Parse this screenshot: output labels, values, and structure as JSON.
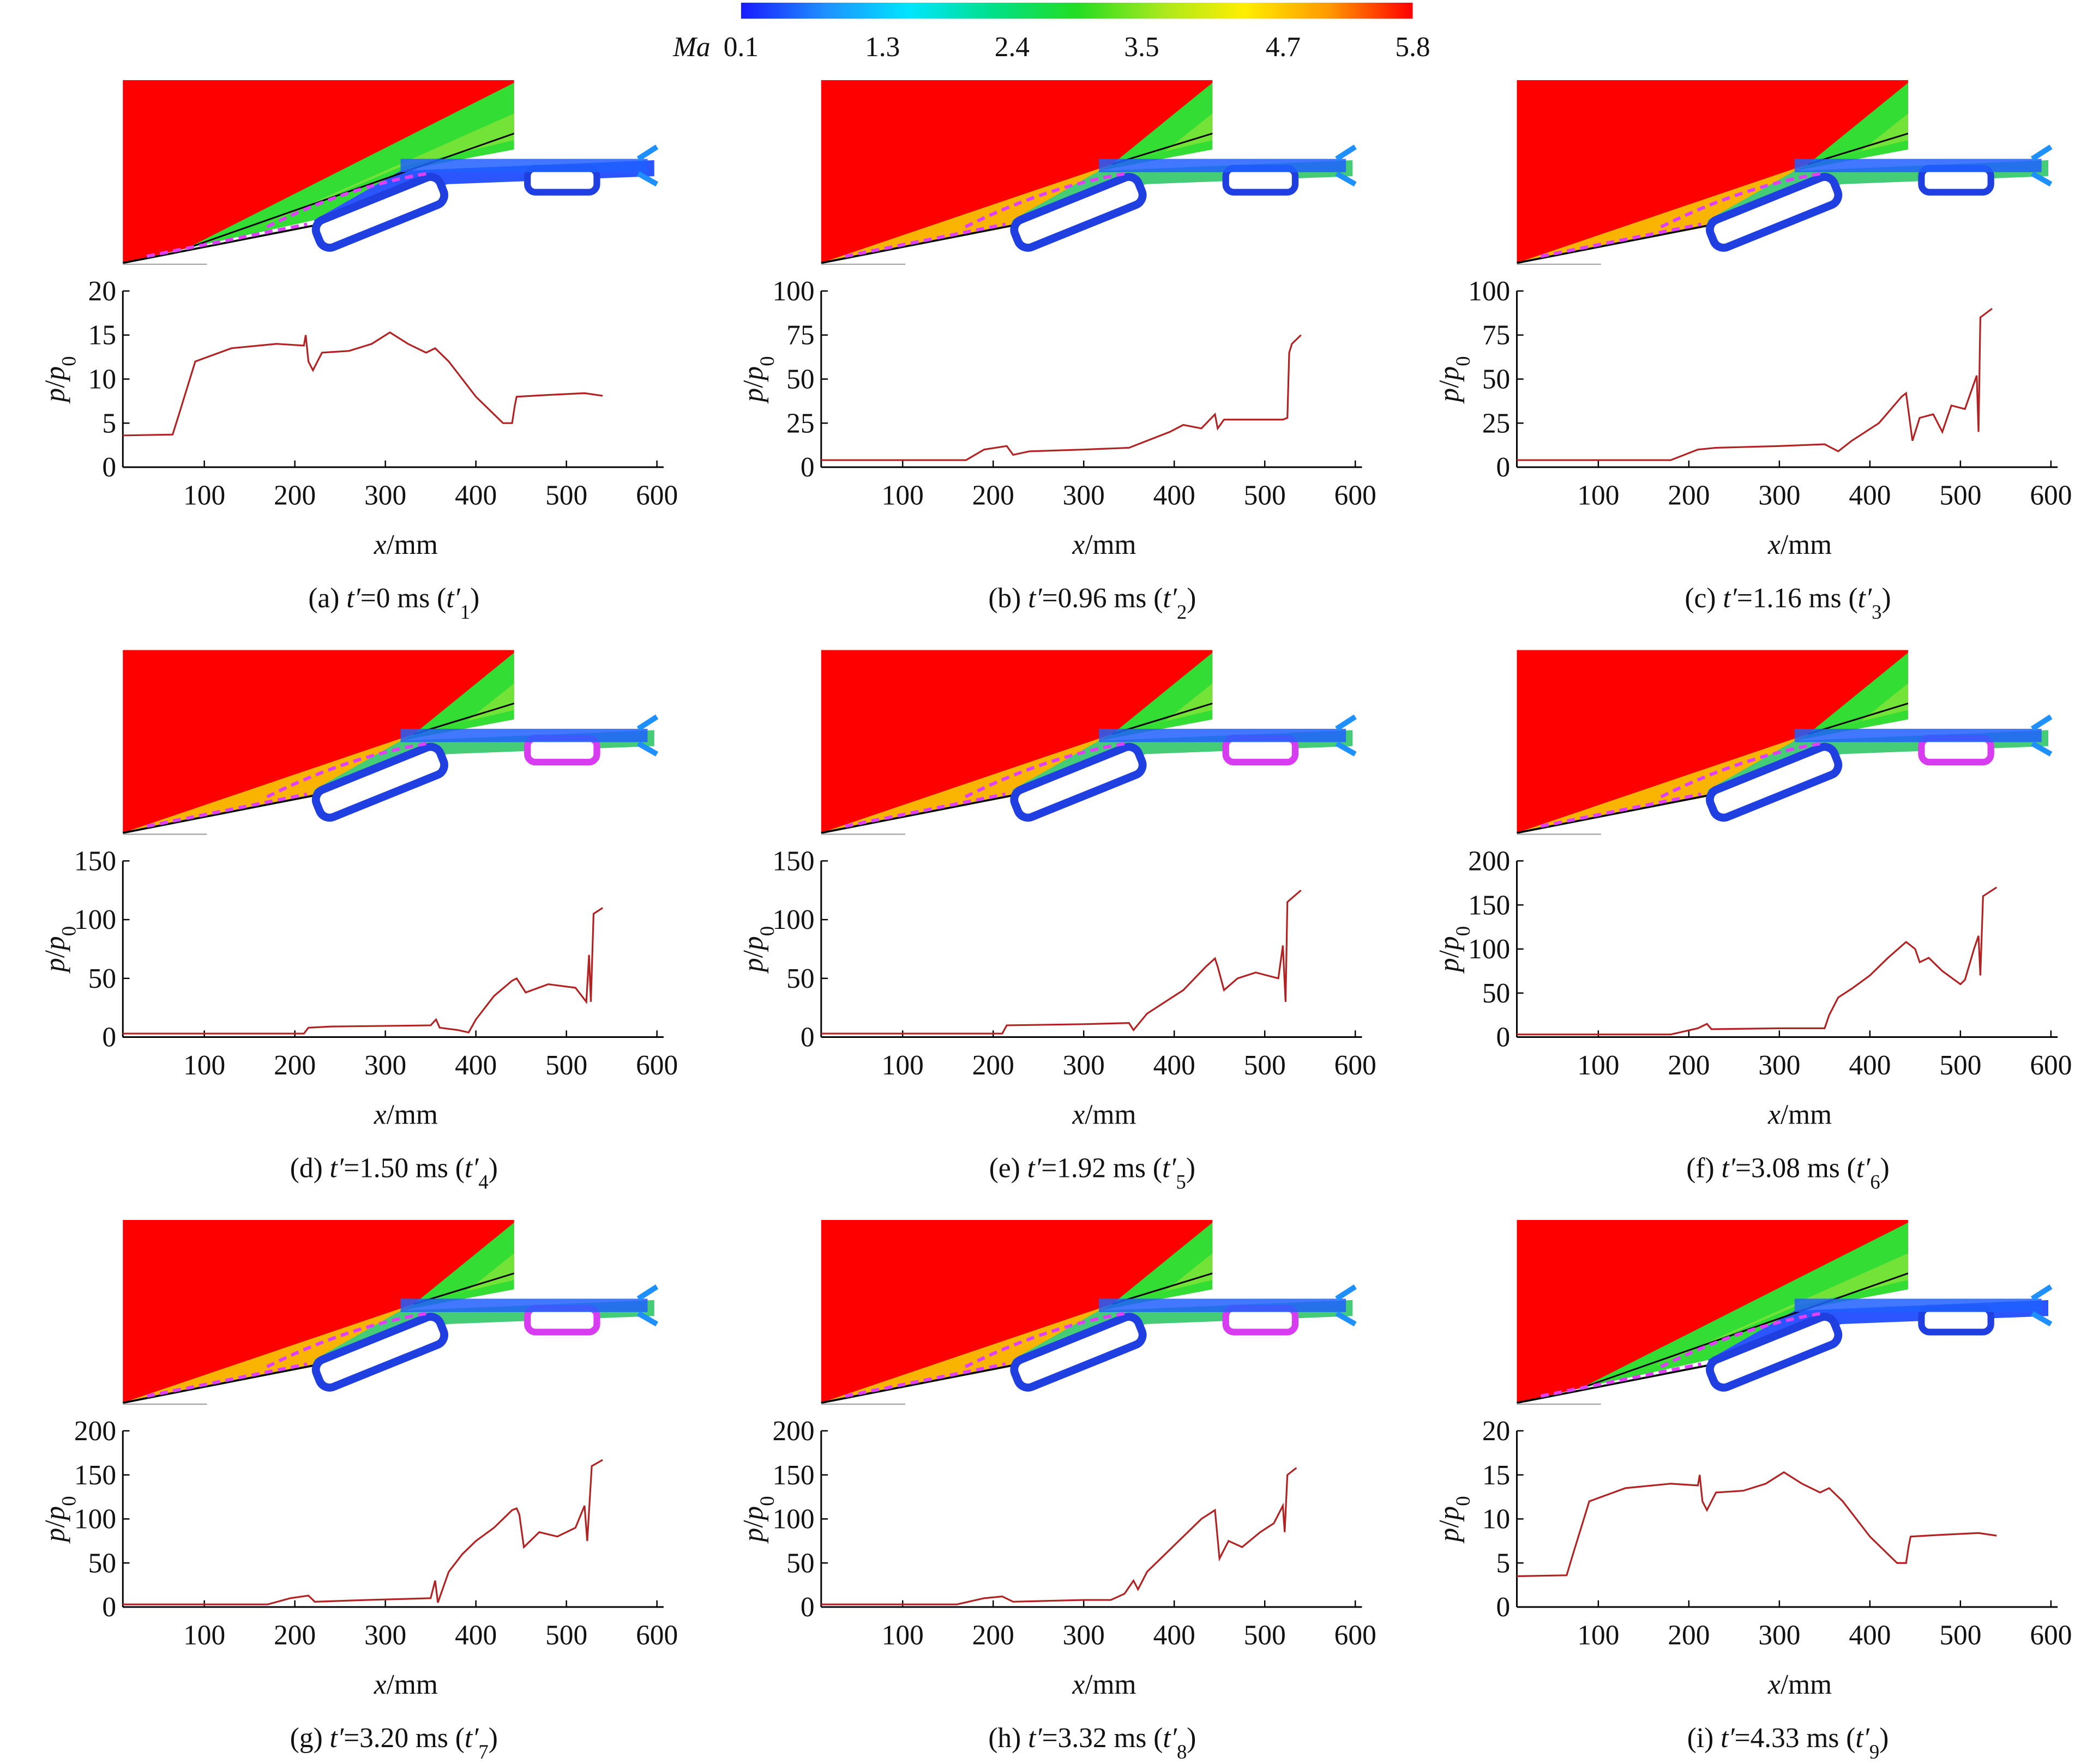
{
  "colorbar": {
    "label": "Ma",
    "lim": [
      0.1,
      5.8
    ],
    "ticks": [
      0.1,
      1.3,
      2.4,
      3.5,
      4.7,
      5.8
    ],
    "colors": [
      "#1a1aff",
      "#1e90ff",
      "#00e5ff",
      "#00e08a",
      "#22dd22",
      "#a8e81e",
      "#ffee00",
      "#ff9900",
      "#ff0000"
    ]
  },
  "chart_data": [
    {
      "type": "line",
      "caption": [
        "(a) ",
        "t′",
        "=0 ms (",
        "t′",
        "1",
        ")"
      ],
      "xlabel": [
        "x",
        "/mm"
      ],
      "ylabel": [
        "p",
        "/",
        "p",
        "0"
      ],
      "color": "#b22222",
      "xlim": [
        10,
        600
      ],
      "ylim": [
        0,
        20
      ],
      "xticks": [
        100,
        200,
        300,
        400,
        500,
        600
      ],
      "yticks": [
        0,
        5,
        10,
        15,
        20
      ],
      "x": [
        10,
        65,
        72,
        90,
        130,
        180,
        210,
        212,
        215,
        220,
        230,
        260,
        285,
        305,
        325,
        345,
        355,
        370,
        400,
        430,
        440,
        443,
        445,
        480,
        520,
        540
      ],
      "values": [
        3.6,
        3.7,
        6,
        12,
        13.5,
        14,
        13.8,
        15,
        12,
        11,
        13,
        13.2,
        14,
        15.3,
        14,
        13,
        13.5,
        12,
        8,
        5,
        5,
        7,
        8,
        8.2,
        8.4,
        8.1
      ]
    },
    {
      "type": "line",
      "caption": [
        "(b) ",
        "t′",
        "=0.96 ms (",
        "t′",
        "2",
        ")"
      ],
      "xlabel": [
        "x",
        "/mm"
      ],
      "ylabel": [
        "p",
        "/",
        "p",
        "0"
      ],
      "color": "#b22222",
      "xlim": [
        10,
        600
      ],
      "ylim": [
        0,
        100
      ],
      "xticks": [
        100,
        200,
        300,
        400,
        500,
        600
      ],
      "yticks": [
        0,
        25,
        50,
        75,
        100
      ],
      "x": [
        10,
        170,
        190,
        215,
        222,
        240,
        300,
        350,
        370,
        395,
        410,
        430,
        445,
        448,
        455,
        520,
        525,
        527,
        530,
        540
      ],
      "values": [
        4,
        4,
        10,
        12,
        7,
        9,
        10,
        11,
        15,
        20,
        24,
        22,
        30,
        22,
        27,
        27,
        28,
        65,
        70,
        75
      ]
    },
    {
      "type": "line",
      "caption": [
        "(c) ",
        "t′",
        "=1.16 ms (",
        "t′",
        "3",
        ")"
      ],
      "xlabel": [
        "x",
        "/mm"
      ],
      "ylabel": [
        "p",
        "/",
        "p",
        "0"
      ],
      "color": "#b22222",
      "xlim": [
        10,
        600
      ],
      "ylim": [
        0,
        100
      ],
      "xticks": [
        100,
        200,
        300,
        400,
        500,
        600
      ],
      "yticks": [
        0,
        25,
        50,
        75,
        100
      ],
      "x": [
        10,
        180,
        210,
        230,
        300,
        350,
        365,
        380,
        410,
        435,
        440,
        447,
        455,
        470,
        480,
        490,
        505,
        518,
        520,
        522,
        535
      ],
      "values": [
        4,
        4,
        10,
        11,
        12,
        13,
        9,
        15,
        25,
        40,
        42,
        15,
        28,
        30,
        20,
        35,
        33,
        52,
        20,
        85,
        90
      ]
    },
    {
      "type": "line",
      "caption": [
        "(d) ",
        "t′",
        "=1.50 ms (",
        "t′",
        "4",
        ")"
      ],
      "xlabel": [
        "x",
        "/mm"
      ],
      "ylabel": [
        "p",
        "/",
        "p",
        "0"
      ],
      "color": "#b22222",
      "xlim": [
        10,
        600
      ],
      "ylim": [
        0,
        150
      ],
      "xticks": [
        100,
        200,
        300,
        400,
        500,
        600
      ],
      "yticks": [
        0,
        50,
        100,
        150
      ],
      "x": [
        10,
        210,
        215,
        240,
        350,
        356,
        360,
        380,
        392,
        400,
        420,
        440,
        445,
        455,
        480,
        510,
        522,
        525,
        527,
        530,
        540
      ],
      "values": [
        3,
        3,
        8,
        9,
        10,
        15,
        8,
        6,
        4,
        15,
        35,
        48,
        50,
        38,
        45,
        42,
        30,
        70,
        30,
        105,
        110
      ]
    },
    {
      "type": "line",
      "caption": [
        "(e) ",
        "t′",
        "=1.92 ms (",
        "t′",
        "5",
        ")"
      ],
      "xlabel": [
        "x",
        "/mm"
      ],
      "ylabel": [
        "p",
        "/",
        "p",
        "0"
      ],
      "color": "#b22222",
      "xlim": [
        10,
        600
      ],
      "ylim": [
        0,
        150
      ],
      "xticks": [
        100,
        200,
        300,
        400,
        500,
        600
      ],
      "yticks": [
        0,
        50,
        100,
        150
      ],
      "x": [
        10,
        210,
        215,
        300,
        350,
        355,
        370,
        410,
        435,
        445,
        448,
        455,
        470,
        490,
        515,
        520,
        523,
        525,
        540
      ],
      "values": [
        3,
        3,
        10,
        11,
        12,
        6,
        20,
        40,
        60,
        67,
        60,
        40,
        50,
        55,
        50,
        78,
        30,
        115,
        125
      ]
    },
    {
      "type": "line",
      "caption": [
        "(f) ",
        "t′",
        "=3.08 ms (",
        "t′",
        "6",
        ")"
      ],
      "xlabel": [
        "x",
        "/mm"
      ],
      "ylabel": [
        "p",
        "/",
        "p",
        "0"
      ],
      "color": "#b22222",
      "xlim": [
        10,
        600
      ],
      "ylim": [
        0,
        200
      ],
      "xticks": [
        100,
        200,
        300,
        400,
        500,
        600
      ],
      "yticks": [
        0,
        50,
        100,
        150,
        200
      ],
      "x": [
        10,
        180,
        210,
        220,
        225,
        300,
        350,
        355,
        365,
        380,
        400,
        420,
        440,
        450,
        455,
        465,
        480,
        500,
        505,
        515,
        520,
        522,
        525,
        540
      ],
      "values": [
        3,
        3,
        10,
        15,
        9,
        10,
        10,
        25,
        45,
        55,
        70,
        90,
        108,
        100,
        85,
        90,
        75,
        60,
        65,
        100,
        115,
        70,
        160,
        170
      ]
    },
    {
      "type": "line",
      "caption": [
        "(g) ",
        "t′",
        "=3.20 ms (",
        "t′",
        "7",
        ")"
      ],
      "xlabel": [
        "x",
        "/mm"
      ],
      "ylabel": [
        "p",
        "/",
        "p",
        "0"
      ],
      "color": "#b22222",
      "xlim": [
        10,
        600
      ],
      "ylim": [
        0,
        200
      ],
      "xticks": [
        100,
        200,
        300,
        400,
        500,
        600
      ],
      "yticks": [
        0,
        50,
        100,
        150,
        200
      ],
      "x": [
        10,
        170,
        195,
        215,
        222,
        280,
        350,
        355,
        358,
        370,
        385,
        400,
        420,
        440,
        445,
        448,
        453,
        470,
        490,
        510,
        520,
        523,
        528,
        540
      ],
      "values": [
        3,
        3,
        10,
        13,
        6,
        8,
        10,
        30,
        5,
        40,
        60,
        75,
        90,
        110,
        112,
        105,
        68,
        85,
        80,
        90,
        115,
        75,
        160,
        167
      ]
    },
    {
      "type": "line",
      "caption": [
        "(h) ",
        "t′",
        "=3.32 ms (",
        "t′",
        "8",
        ")"
      ],
      "xlabel": [
        "x",
        "/mm"
      ],
      "ylabel": [
        "p",
        "/",
        "p",
        "0"
      ],
      "color": "#b22222",
      "xlim": [
        10,
        600
      ],
      "ylim": [
        0,
        200
      ],
      "xticks": [
        100,
        200,
        300,
        400,
        500,
        600
      ],
      "yticks": [
        0,
        50,
        100,
        150,
        200
      ],
      "x": [
        10,
        160,
        190,
        210,
        222,
        300,
        330,
        345,
        355,
        360,
        370,
        390,
        410,
        430,
        445,
        450,
        460,
        475,
        495,
        510,
        520,
        522,
        525,
        535
      ],
      "values": [
        3,
        3,
        10,
        12,
        6,
        8,
        8,
        15,
        30,
        20,
        40,
        60,
        80,
        100,
        110,
        55,
        75,
        68,
        85,
        95,
        115,
        85,
        150,
        158
      ]
    },
    {
      "type": "line",
      "caption": [
        "(i) ",
        "t′",
        "=4.33 ms (",
        "t′",
        "9",
        ")"
      ],
      "xlabel": [
        "x",
        "/mm"
      ],
      "ylabel": [
        "p",
        "/",
        "p",
        "0"
      ],
      "color": "#b22222",
      "xlim": [
        10,
        600
      ],
      "ylim": [
        0,
        20
      ],
      "xticks": [
        100,
        200,
        300,
        400,
        500,
        600
      ],
      "yticks": [
        0,
        5,
        10,
        15,
        20
      ],
      "x": [
        10,
        65,
        72,
        90,
        130,
        180,
        210,
        212,
        215,
        220,
        230,
        260,
        285,
        305,
        325,
        345,
        355,
        370,
        400,
        430,
        440,
        443,
        445,
        480,
        520,
        540
      ],
      "values": [
        3.5,
        3.6,
        6,
        12,
        13.5,
        14,
        13.8,
        15,
        12,
        11,
        13,
        13.2,
        14,
        15.3,
        14,
        13,
        13.5,
        12,
        8,
        5,
        5,
        7,
        8,
        8.2,
        8.4,
        8.1
      ]
    }
  ]
}
